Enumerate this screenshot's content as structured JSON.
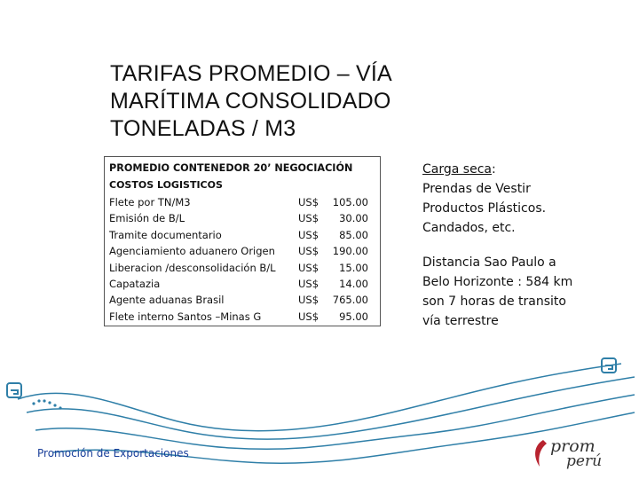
{
  "title": {
    "line1": "TARIFAS PROMEDIO – VÍA",
    "line2": "MARÍTIMA CONSOLIDADO",
    "line3": "TONELADAS / M3"
  },
  "table": {
    "header": "PROMEDIO CONTENEDOR 20’ NEGOCIACIÓN",
    "subheader": "COSTOS LOGISTICOS",
    "rows": [
      {
        "label": "Flete por TN/M3",
        "currency": "US$",
        "value": "105.00"
      },
      {
        "label": "Emisión de B/L",
        "currency": "US$",
        "value": "30.00"
      },
      {
        "label": "Tramite documentario",
        "currency": "US$",
        "value": "85.00"
      },
      {
        "label": "Agenciamiento aduanero Origen",
        "currency": "US$",
        "value": "190.00"
      },
      {
        "label": "Liberacion /desconsolidación B/L",
        "currency": "US$",
        "value": "15.00"
      },
      {
        "label": "Capatazia",
        "currency": "US$",
        "value": "14.00"
      },
      {
        "label": "Agente aduanas Brasil",
        "currency": "US$",
        "value": "765.00"
      },
      {
        "label": "Flete interno Santos –Minas G",
        "currency": "US$",
        "value": "95.00"
      }
    ]
  },
  "side_note_1": {
    "heading": "Carga seca",
    "colon": ":",
    "line1": "Prendas de Vestir",
    "line2": "Productos Plásticos.",
    "line3": "Candados, etc."
  },
  "side_note_2": {
    "line1": "Distancia Sao  Paulo a",
    "line2": "Belo Horizonte : 584 km",
    "line3": "son 7 horas de transito",
    "line4": "vía terrestre"
  },
  "footer": {
    "text": "Promoción de Exportaciones"
  },
  "logo": {
    "word1": "prom",
    "word2": "perú"
  },
  "colors": {
    "accent_blue": "#2f7fa8",
    "footer_blue": "#1a3f9a",
    "logo_red": "#b8232f"
  }
}
